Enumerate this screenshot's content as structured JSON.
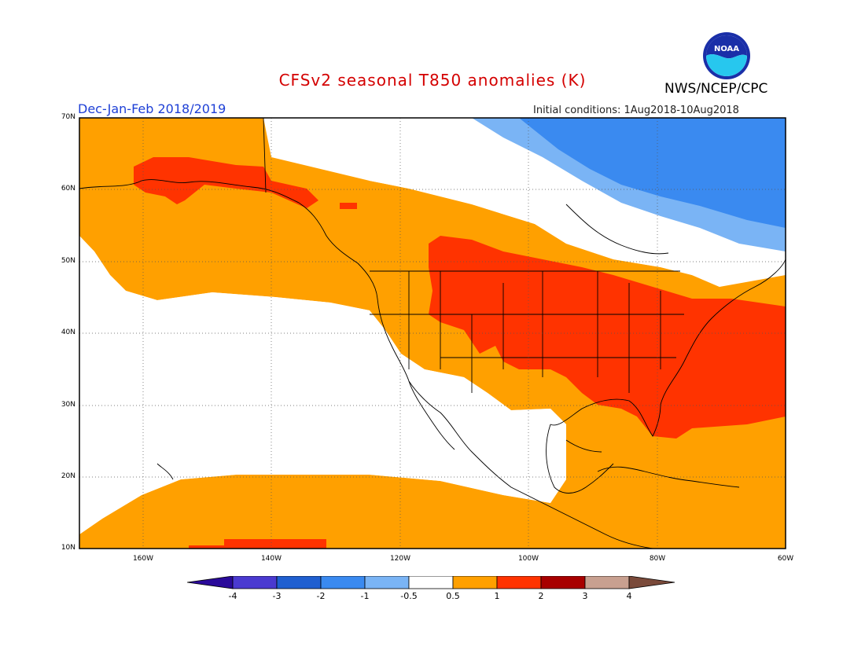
{
  "header": {
    "title": "CFSv2 seasonal T850 anomalies (K)",
    "agency": "NWS/NCEP/CPC",
    "season": "Dec-Jan-Feb 2018/2019",
    "initial_conditions": "Initial conditions: 1Aug2018-10Aug2018",
    "logo_text": "NOAA"
  },
  "map": {
    "lat_labels": [
      "70N",
      "60N",
      "50N",
      "40N",
      "30N",
      "20N",
      "10N"
    ],
    "lon_labels": [
      "160W",
      "140W",
      "120W",
      "100W",
      "80W",
      "60W"
    ],
    "extent": {
      "lon_min": -170,
      "lon_max": -60,
      "lat_min": 10,
      "lat_max": 70
    }
  },
  "colorbar": {
    "labels": [
      "-4",
      "-3",
      "-2",
      "-1",
      "-0.5",
      "0.5",
      "1",
      "2",
      "3",
      "4"
    ],
    "colors": [
      "#2a0a9a",
      "#4a3ad0",
      "#1f5fd0",
      "#3a8af0",
      "#7ab4f5",
      "#ffffff",
      "#ffa000",
      "#ff3300",
      "#a80000",
      "#c8a090",
      "#7a4a3a"
    ]
  },
  "anomaly_colors": {
    "above_0_5": "#ffa000",
    "above_1": "#ff3300",
    "below_minus_0_5": "#7ab4f5",
    "below_minus_1": "#3a8af0"
  }
}
